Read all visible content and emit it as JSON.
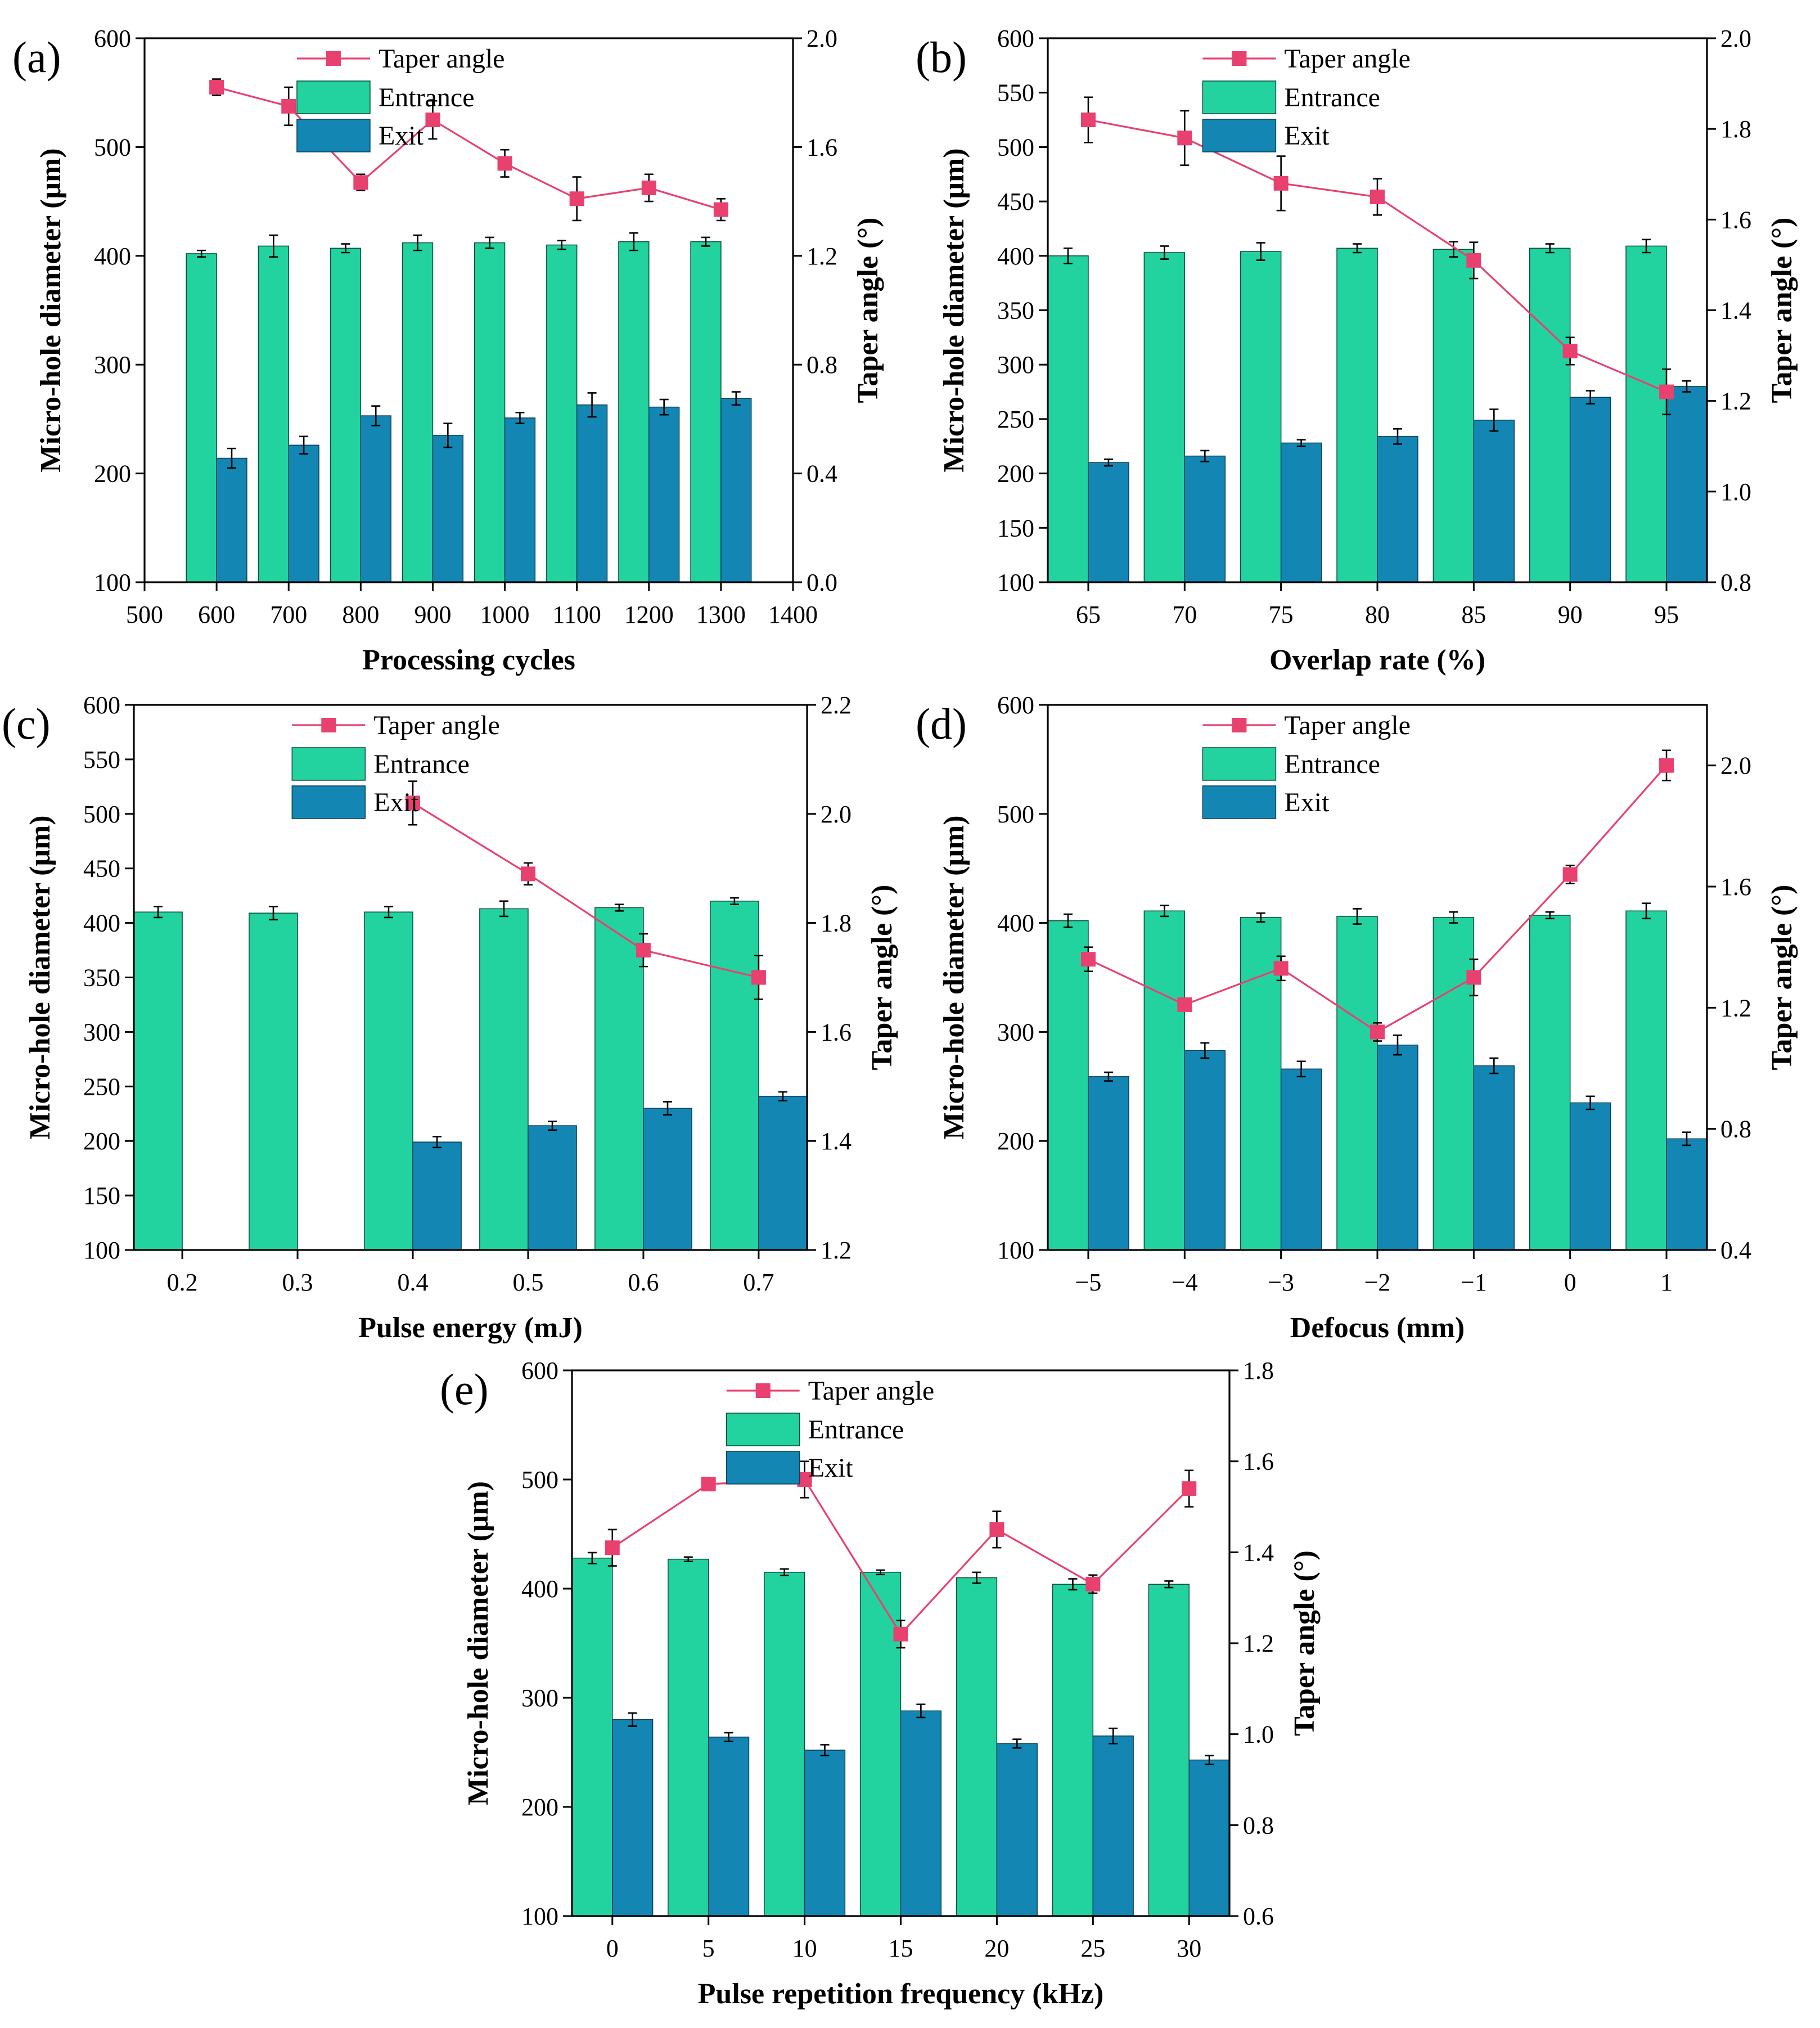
{
  "colors": {
    "entrance": "#22d3a0",
    "exit": "#1386b4",
    "taper": "#e8416f"
  },
  "legend": {
    "taper": "Taper angle",
    "entrance": "Entrance",
    "exit": "Exit"
  },
  "chart_data": [
    {
      "label": "(a)",
      "type": "bar+line",
      "xlabel": "Processing cycles",
      "ylabel": "Micro-hole diameter (μm)",
      "y2label": "Taper angle (°)",
      "xcat": false,
      "xlim": [
        500,
        1400
      ],
      "xticks": [
        500,
        600,
        700,
        800,
        900,
        1000,
        1100,
        1200,
        1300,
        1400
      ],
      "ylim": [
        100,
        600
      ],
      "yticks": [
        100,
        200,
        300,
        400,
        500,
        600
      ],
      "y2lim": [
        0.0,
        2.0
      ],
      "y2ticks": [
        "0.0",
        "0.4",
        "0.8",
        "1.2",
        "1.6",
        "2.0"
      ],
      "x": [
        600,
        700,
        800,
        900,
        1000,
        1100,
        1200,
        1300
      ],
      "barwidth": 40,
      "series": [
        {
          "name": "Entrance",
          "values": [
            402,
            409,
            407,
            412,
            412,
            410,
            413,
            413
          ],
          "err": [
            3,
            10,
            4,
            7,
            5,
            4,
            8,
            4
          ]
        },
        {
          "name": "Exit",
          "values": [
            214,
            226,
            253,
            235,
            251,
            263,
            261,
            269
          ],
          "err": [
            9,
            8,
            9,
            11,
            5,
            11,
            7,
            6
          ]
        },
        {
          "name": "Taper angle",
          "values": [
            1.82,
            1.75,
            1.47,
            1.7,
            1.54,
            1.41,
            1.45,
            1.37
          ],
          "err": [
            0.03,
            0.07,
            0.03,
            0.07,
            0.05,
            0.08,
            0.05,
            0.04
          ]
        }
      ]
    },
    {
      "label": "(b)",
      "type": "bar+line",
      "xlabel": "Overlap rate (%)",
      "ylabel": "Micro-hole diameter (μm)",
      "y2label": "Taper angle (°)",
      "xcat": true,
      "categories": [
        "65",
        "70",
        "75",
        "80",
        "85",
        "90",
        "95"
      ],
      "ylim": [
        100,
        600
      ],
      "yticks": [
        100,
        150,
        200,
        250,
        300,
        350,
        400,
        450,
        500,
        550,
        600
      ],
      "y2lim": [
        0.8,
        2.0
      ],
      "y2ticks": [
        "0.8",
        "1.0",
        "1.2",
        "1.4",
        "1.6",
        "1.8",
        "2.0"
      ],
      "series": [
        {
          "name": "Entrance",
          "values": [
            400,
            403,
            404,
            407,
            406,
            407,
            409
          ],
          "err": [
            7,
            6,
            8,
            4,
            7,
            4,
            6
          ]
        },
        {
          "name": "Exit",
          "values": [
            210,
            216,
            228,
            234,
            249,
            270,
            280
          ],
          "err": [
            3,
            5,
            3,
            7,
            10,
            6,
            5
          ]
        },
        {
          "name": "Taper angle",
          "values": [
            1.82,
            1.78,
            1.68,
            1.65,
            1.51,
            1.31,
            1.22
          ],
          "err": [
            0.05,
            0.06,
            0.06,
            0.04,
            0.04,
            0.03,
            0.05
          ]
        }
      ]
    },
    {
      "label": "(c)",
      "type": "bar+line",
      "xlabel": "Pulse energy (mJ)",
      "ylabel": "Micro-hole diameter (μm)",
      "y2label": "Taper angle (°)",
      "xcat": true,
      "categories": [
        "0.2",
        "0.3",
        "0.4",
        "0.5",
        "0.6",
        "0.7"
      ],
      "ylim": [
        100,
        600
      ],
      "yticks": [
        100,
        150,
        200,
        250,
        300,
        350,
        400,
        450,
        500,
        550,
        600
      ],
      "y2lim": [
        1.2,
        2.2
      ],
      "y2ticks": [
        "1.2",
        "1.4",
        "1.6",
        "1.8",
        "2.0",
        "2.2"
      ],
      "series": [
        {
          "name": "Entrance",
          "values": [
            410,
            409,
            410,
            413,
            414,
            420
          ],
          "err": [
            5,
            6,
            5,
            7,
            3,
            3
          ]
        },
        {
          "name": "Exit",
          "values": [
            null,
            null,
            199,
            214,
            230,
            241
          ],
          "err": [
            null,
            null,
            5,
            4,
            6,
            4
          ]
        },
        {
          "name": "Taper angle",
          "values": [
            null,
            null,
            2.02,
            1.89,
            1.75,
            1.7
          ],
          "err": [
            null,
            null,
            0.04,
            0.02,
            0.03,
            0.04
          ]
        }
      ]
    },
    {
      "label": "(d)",
      "type": "bar+line",
      "xlabel": "Defocus (mm)",
      "ylabel": "Micro-hole diameter (μm)",
      "y2label": "Taper angle (°)",
      "xcat": true,
      "categories": [
        "−5",
        "−4",
        "−3",
        "−2",
        "−1",
        "0",
        "1"
      ],
      "ylim": [
        100,
        600
      ],
      "yticks": [
        100,
        200,
        300,
        400,
        500,
        600
      ],
      "y2lim": [
        0.4,
        2.2
      ],
      "y2ticks": [
        "0.4",
        "0.8",
        "1.2",
        "1.6",
        "2.0"
      ],
      "series": [
        {
          "name": "Entrance",
          "values": [
            402,
            411,
            405,
            406,
            405,
            407,
            411
          ],
          "err": [
            6,
            5,
            4,
            7,
            5,
            3,
            7
          ]
        },
        {
          "name": "Exit",
          "values": [
            259,
            283,
            266,
            288,
            269,
            235,
            202
          ],
          "err": [
            4,
            7,
            7,
            9,
            7,
            6,
            6
          ]
        },
        {
          "name": "Taper angle",
          "values": [
            1.36,
            1.21,
            1.33,
            1.12,
            1.3,
            1.64,
            2.0
          ],
          "err": [
            0.04,
            0.02,
            0.04,
            0.03,
            0.06,
            0.03,
            0.05
          ]
        }
      ]
    },
    {
      "label": "(e)",
      "type": "bar+line",
      "xlabel": "Pulse repetition frequency (kHz)",
      "ylabel": "Micro-hole diameter (μm)",
      "y2label": "Taper angle (°)",
      "xcat": true,
      "categories": [
        "0",
        "5",
        "10",
        "15",
        "20",
        "25",
        "30"
      ],
      "ylim": [
        100,
        600
      ],
      "yticks": [
        100,
        200,
        300,
        400,
        500,
        600
      ],
      "y2lim": [
        0.6,
        1.8
      ],
      "y2ticks": [
        "0.6",
        "0.8",
        "1.0",
        "1.2",
        "1.4",
        "1.6",
        "1.8"
      ],
      "series": [
        {
          "name": "Entrance",
          "values": [
            428,
            427,
            415,
            415,
            410,
            404,
            404
          ],
          "err": [
            5,
            2,
            3,
            2,
            5,
            5,
            3
          ]
        },
        {
          "name": "Exit",
          "values": [
            280,
            264,
            252,
            288,
            258,
            265,
            243
          ],
          "err": [
            6,
            4,
            5,
            6,
            4,
            7,
            4
          ]
        },
        {
          "name": "Taper angle",
          "values": [
            1.41,
            1.55,
            1.56,
            1.22,
            1.45,
            1.33,
            1.54
          ],
          "err": [
            0.04,
            0.01,
            0.04,
            0.03,
            0.04,
            0.02,
            0.04
          ]
        }
      ]
    }
  ]
}
